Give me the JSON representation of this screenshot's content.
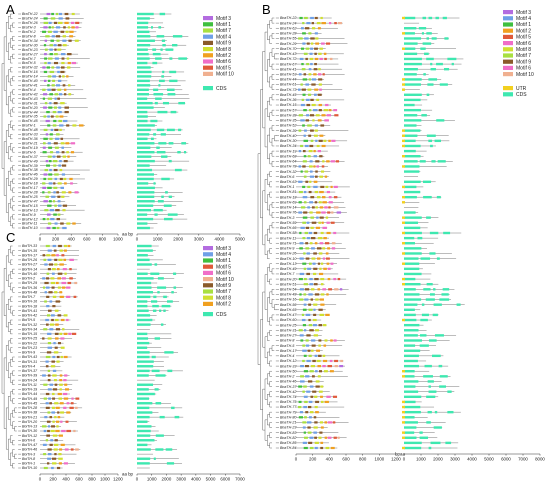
{
  "panels": [
    {
      "letter": "A",
      "prefix": "BraTH-",
      "genes": [
        "22",
        "24",
        "26",
        "3",
        "2",
        "8",
        "34",
        "30",
        "23",
        "27",
        "7",
        "5",
        "32",
        "16",
        "14",
        "40",
        "41",
        "4",
        "42",
        "43",
        "31",
        "20",
        "44",
        "35",
        "45",
        "1",
        "48",
        "33",
        "36",
        "21",
        "19",
        "6",
        "37",
        "49",
        "39",
        "38",
        "46",
        "29",
        "18",
        "17",
        "28",
        "25",
        "47",
        "15",
        "13",
        "9",
        "12",
        "11",
        "10"
      ],
      "motif_axis": {
        "ticks": [
          "0",
          "200",
          "400",
          "600",
          "800",
          "1000"
        ],
        "unit": "aa"
      },
      "cds_axis": {
        "ticks": [
          "0",
          "1000",
          "2000",
          "3000",
          "4000",
          "5000"
        ],
        "unit": "bp"
      },
      "legend": [
        "Motif 3",
        "Motif 1",
        "Motif 7",
        "Motif 4",
        "Motif 9",
        "Motif 8",
        "Motif 2",
        "Motif 6",
        "Motif 5",
        "Motif 10"
      ],
      "cds_legend": [
        "CDS"
      ]
    },
    {
      "letter": "B",
      "prefix": "BnaTH-",
      "genes": [
        "22",
        "24",
        "62",
        "28",
        "55",
        "29",
        "70",
        "43",
        "72",
        "67",
        "41",
        "53",
        "44",
        "61",
        "73",
        "45",
        "36",
        "15",
        "57",
        "38",
        "35",
        "52",
        "39",
        "40",
        "30",
        "34",
        "19",
        "68",
        "64",
        "78",
        "32",
        "6",
        "63",
        "1",
        "81",
        "18",
        "69",
        "14",
        "76",
        "3",
        "59",
        "66",
        "58",
        "11",
        "71",
        "9",
        "26",
        "10",
        "13",
        "49",
        "7",
        "20",
        "51",
        "54",
        "48",
        "16",
        "56",
        "65",
        "47",
        "60",
        "25",
        "31",
        "27",
        "8",
        "5",
        "17",
        "4",
        "12",
        "33",
        "50",
        "2",
        "46",
        "37",
        "42",
        "74",
        "75",
        "77",
        "79",
        "80",
        "21",
        "23",
        "83",
        "82",
        "85",
        "84"
      ],
      "motif_axis": {
        "ticks": [
          "0",
          "200",
          "400",
          "600",
          "800",
          "1000",
          "1200"
        ],
        "unit": "aa"
      },
      "cds_axis": {
        "ticks": [
          "0",
          "1000",
          "2000",
          "3000",
          "4000",
          "5000",
          "6000",
          "7000",
          "8000"
        ],
        "unit": "bp"
      },
      "legend": [
        "Motif 3",
        "Motif 4",
        "Motif 1",
        "Motif 2",
        "Motif 5",
        "Motif 6",
        "Motif 8",
        "Motif 7",
        "Motif 9",
        "Motif 6",
        "Motif 10"
      ],
      "cds_legend": [
        "UTR",
        "CDS"
      ]
    },
    {
      "letter": "C",
      "prefix": "BolTH-",
      "genes": [
        "33",
        "35",
        "17",
        "26",
        "27",
        "14",
        "40",
        "2",
        "29",
        "36",
        "48",
        "7",
        "16",
        "18",
        "41",
        "42",
        "5",
        "32",
        "34",
        "15",
        "25",
        "22",
        "23",
        "9",
        "43",
        "31",
        "4",
        "37",
        "39",
        "24",
        "11",
        "19",
        "44",
        "49",
        "45",
        "28",
        "38",
        "21",
        "20",
        "13",
        "30",
        "12",
        "6",
        "47",
        "46",
        "3",
        "8",
        "1",
        "10"
      ],
      "motif_axis": {
        "ticks": [
          "0",
          "200",
          "400",
          "600",
          "800",
          "1000",
          "1200"
        ],
        "unit": "aa"
      },
      "cds_axis": {
        "ticks": [
          "0",
          "1000",
          "2000",
          "3000",
          "4000",
          "5000",
          "6000",
          "7000"
        ],
        "unit": "bp"
      },
      "legend": [
        "Motif 3",
        "Motif 4",
        "Motif 1",
        "Motif 5",
        "Motif 6",
        "Motif 10",
        "Motif 9",
        "Motif 7",
        "Motif 8",
        "Motif 2"
      ],
      "cds_legend": [
        "CDS"
      ]
    }
  ],
  "colors": {
    "Motif 1": "#3fbf3f",
    "Motif 2": "#f0a020",
    "Motif 3": "#b36ce0",
    "Motif 4": "#6fa0e6",
    "Motif 5": "#e05a3a",
    "Motif 6": "#f06ec8",
    "Motif 7": "#a8e040",
    "Motif 8": "#d0e030",
    "Motif 9": "#8a5a2a",
    "Motif 10": "#f0b090",
    "CDS": "#3ee8b0",
    "UTR": "#f2d020",
    "line": "#555555"
  }
}
